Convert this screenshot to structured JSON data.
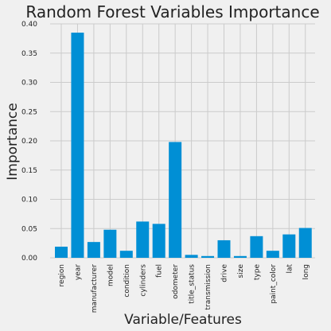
{
  "chart_data": {
    "type": "bar",
    "title": "Random Forest Variables Importance",
    "xlabel": "Variable/Features",
    "ylabel": "Importance",
    "categories": [
      "region",
      "year",
      "manufacturer",
      "model",
      "condition",
      "cylinders",
      "fuel",
      "odometer",
      "title_status",
      "transmission",
      "drive",
      "size",
      "type",
      "paint_color",
      "lat",
      "long"
    ],
    "values": [
      0.019,
      0.385,
      0.027,
      0.048,
      0.012,
      0.062,
      0.058,
      0.198,
      0.005,
      0.003,
      0.03,
      0.003,
      0.037,
      0.012,
      0.04,
      0.051
    ],
    "ylim": [
      0,
      0.4
    ],
    "yticks": [
      "0.00",
      "0.05",
      "0.10",
      "0.15",
      "0.20",
      "0.25",
      "0.30",
      "0.35",
      "0.40"
    ],
    "grid": true,
    "bar_color": "#008fd5",
    "background_color": "#f0f0f0",
    "grid_color": "#cbcbcb"
  }
}
